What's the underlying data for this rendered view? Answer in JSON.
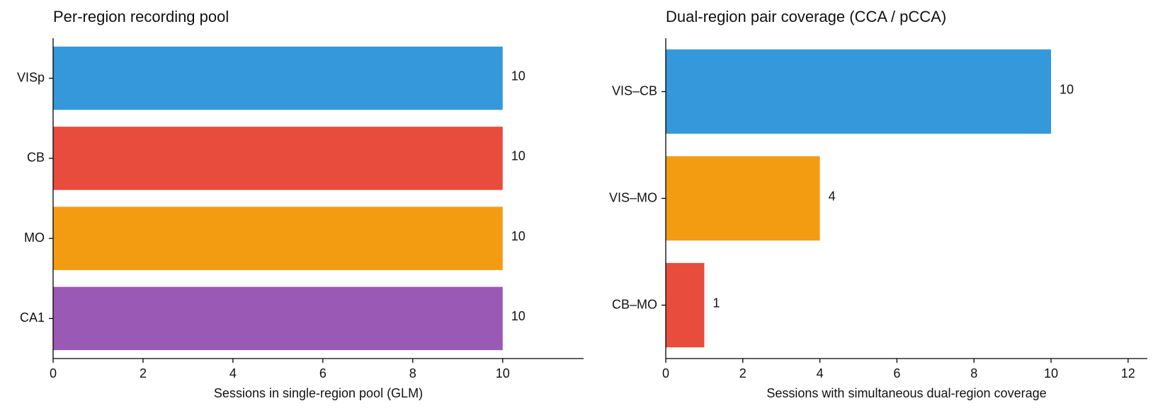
{
  "chart_data": [
    {
      "type": "barh",
      "title": "Per-region recording pool",
      "categories": [
        "VISp",
        "CB",
        "MO",
        "CA1"
      ],
      "values": [
        10,
        10,
        10,
        10
      ],
      "colors": [
        "#3498db",
        "#e74c3c",
        "#f39c12",
        "#9b59b6"
      ],
      "xlabel": "Sessions in single-region pool (GLM)",
      "xlim": [
        0,
        11.8
      ],
      "xticks": [
        0,
        2,
        4,
        6,
        8,
        10
      ]
    },
    {
      "type": "barh",
      "title": "Dual-region pair coverage (CCA / pCCA)",
      "categories": [
        "VIS–CB",
        "VIS–MO",
        "CB–MO"
      ],
      "values": [
        10,
        4,
        1
      ],
      "colors": [
        "#3498db",
        "#f39c12",
        "#e74c3c"
      ],
      "xlabel": "Sessions with simultaneous dual-region coverage",
      "xlim": [
        0,
        12.5
      ],
      "xticks": [
        0,
        2,
        4,
        6,
        8,
        10,
        12
      ]
    }
  ]
}
